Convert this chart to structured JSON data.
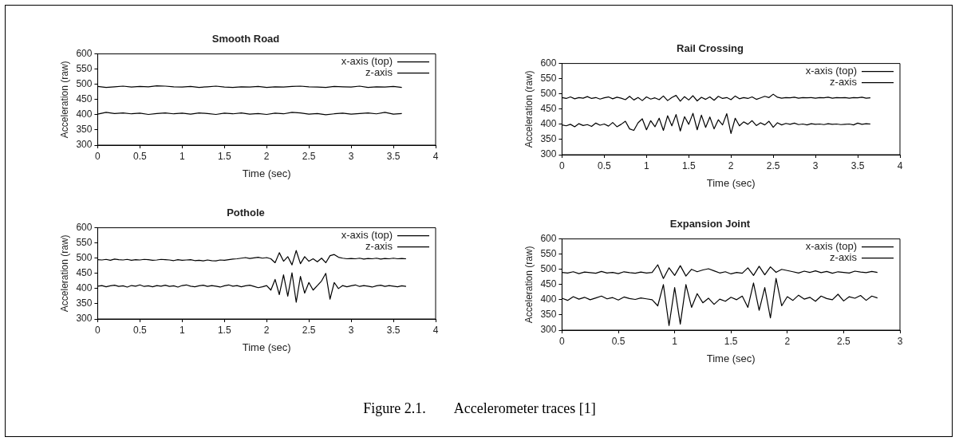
{
  "chart_data": [
    {
      "type": "line",
      "title": "Smooth Road",
      "xlabel": "Time (sec)",
      "ylabel": "Acceleration (raw)",
      "xlim": [
        0,
        4
      ],
      "xticks": [
        0,
        0.5,
        1,
        1.5,
        2,
        2.5,
        3,
        3.5,
        4
      ],
      "ylim": [
        300,
        600
      ],
      "yticks": [
        300,
        350,
        400,
        450,
        500,
        550,
        600
      ],
      "legend": "top right",
      "marker": "none",
      "line_style": "solid",
      "x": [
        0,
        0.1,
        0.2,
        0.3,
        0.4,
        0.5,
        0.6,
        0.7,
        0.8,
        0.9,
        1,
        1.1,
        1.2,
        1.3,
        1.4,
        1.5,
        1.6,
        1.7,
        1.8,
        1.9,
        2,
        2.1,
        2.2,
        2.3,
        2.4,
        2.5,
        2.6,
        2.7,
        2.8,
        2.9,
        3,
        3.1,
        3.2,
        3.3,
        3.4,
        3.5,
        3.6
      ],
      "series": [
        {
          "name": "x-axis (top)",
          "color": "#000000",
          "values": [
            493,
            490,
            492,
            494,
            491,
            493,
            492,
            495,
            494,
            492,
            491,
            493,
            490,
            492,
            494,
            491,
            490,
            492,
            491,
            493,
            490,
            492,
            491,
            493,
            494,
            492,
            491,
            490,
            493,
            492,
            491,
            494,
            490,
            492,
            491,
            493,
            490
          ]
        },
        {
          "name": "z-axis",
          "color": "#000000",
          "values": [
            402,
            408,
            404,
            406,
            403,
            405,
            401,
            404,
            406,
            403,
            405,
            402,
            406,
            404,
            401,
            405,
            403,
            406,
            402,
            404,
            401,
            405,
            403,
            408,
            406,
            402,
            404,
            400,
            403,
            405,
            402,
            404,
            406,
            403,
            408,
            402,
            404
          ]
        }
      ]
    },
    {
      "type": "line",
      "title": "Rail Crossing",
      "xlabel": "Time (sec)",
      "ylabel": "Acceleration (raw)",
      "xlim": [
        0,
        4
      ],
      "xticks": [
        0,
        0.5,
        1,
        1.5,
        2,
        2.5,
        3,
        3.5,
        4
      ],
      "ylim": [
        300,
        600
      ],
      "yticks": [
        300,
        350,
        400,
        450,
        500,
        550,
        600
      ],
      "legend": "top right",
      "marker": "none",
      "line_style": "solid",
      "x": [
        0,
        0.05,
        0.1,
        0.15,
        0.2,
        0.25,
        0.3,
        0.35,
        0.4,
        0.45,
        0.5,
        0.55,
        0.6,
        0.65,
        0.7,
        0.75,
        0.8,
        0.85,
        0.9,
        0.95,
        1,
        1.05,
        1.1,
        1.15,
        1.2,
        1.25,
        1.3,
        1.35,
        1.4,
        1.45,
        1.5,
        1.55,
        1.6,
        1.65,
        1.7,
        1.75,
        1.8,
        1.85,
        1.9,
        1.95,
        2,
        2.05,
        2.1,
        2.15,
        2.2,
        2.25,
        2.3,
        2.35,
        2.4,
        2.45,
        2.5,
        2.55,
        2.6,
        2.65,
        2.7,
        2.75,
        2.8,
        2.85,
        2.9,
        2.95,
        3,
        3.05,
        3.1,
        3.15,
        3.2,
        3.25,
        3.3,
        3.35,
        3.4,
        3.45,
        3.5,
        3.55,
        3.6,
        3.65
      ],
      "series": [
        {
          "name": "x-axis (top)",
          "color": "#000000",
          "values": [
            488,
            485,
            490,
            484,
            488,
            486,
            491,
            485,
            488,
            483,
            487,
            490,
            484,
            489,
            486,
            481,
            492,
            480,
            488,
            478,
            490,
            483,
            487,
            481,
            493,
            478,
            488,
            495,
            476,
            491,
            480,
            494,
            477,
            489,
            482,
            490,
            479,
            492,
            485,
            488,
            481,
            493,
            484,
            488,
            485,
            490,
            482,
            487,
            492,
            488,
            499,
            489,
            486,
            488,
            487,
            489,
            486,
            488,
            487,
            488,
            486,
            488,
            487,
            489,
            486,
            488,
            487,
            488,
            486,
            488,
            487,
            489,
            486,
            487
          ]
        },
        {
          "name": "z-axis",
          "color": "#000000",
          "values": [
            398,
            395,
            400,
            392,
            402,
            396,
            399,
            393,
            404,
            397,
            401,
            394,
            406,
            392,
            400,
            410,
            385,
            380,
            405,
            418,
            382,
            412,
            392,
            420,
            380,
            428,
            395,
            432,
            378,
            425,
            400,
            436,
            382,
            430,
            390,
            424,
            385,
            415,
            398,
            435,
            370,
            420,
            395,
            408,
            400,
            412,
            396,
            405,
            398,
            410,
            390,
            405,
            398,
            403,
            400,
            404,
            399,
            401,
            398,
            402,
            400,
            401,
            399,
            402,
            400,
            401,
            399,
            400,
            401,
            398,
            404,
            400,
            402,
            401
          ]
        }
      ]
    },
    {
      "type": "line",
      "title": "Pothole",
      "ylabel": "Acceleration (raw)",
      "xlim": [
        0,
        4
      ],
      "xticks": [
        0,
        0.5,
        1,
        1.5,
        2,
        2.5,
        3,
        3.5,
        4
      ],
      "ylim": [
        300,
        600
      ],
      "yticks": [
        300,
        350,
        400,
        450,
        500,
        550,
        600
      ],
      "xlabel": "Time (sec)",
      "legend": "top right",
      "marker": "none",
      "line_style": "solid",
      "x": [
        0,
        0.05,
        0.1,
        0.15,
        0.2,
        0.25,
        0.3,
        0.35,
        0.4,
        0.45,
        0.5,
        0.55,
        0.6,
        0.65,
        0.7,
        0.75,
        0.8,
        0.85,
        0.9,
        0.95,
        1,
        1.05,
        1.1,
        1.15,
        1.2,
        1.25,
        1.3,
        1.35,
        1.4,
        1.45,
        1.5,
        1.55,
        1.6,
        1.65,
        1.7,
        1.75,
        1.8,
        1.85,
        1.9,
        1.95,
        2,
        2.05,
        2.1,
        2.15,
        2.2,
        2.25,
        2.3,
        2.35,
        2.4,
        2.45,
        2.5,
        2.55,
        2.6,
        2.65,
        2.7,
        2.75,
        2.8,
        2.85,
        2.9,
        2.95,
        3,
        3.05,
        3.1,
        3.15,
        3.2,
        3.25,
        3.3,
        3.35,
        3.4,
        3.45,
        3.5,
        3.55,
        3.6,
        3.65
      ],
      "series": [
        {
          "name": "x-axis (top)",
          "color": "#000000",
          "values": [
            495,
            494,
            496,
            493,
            497,
            495,
            494,
            496,
            493,
            495,
            494,
            496,
            495,
            493,
            494,
            496,
            495,
            494,
            492,
            495,
            493,
            494,
            495,
            492,
            493,
            491,
            494,
            492,
            491,
            494,
            493,
            495,
            497,
            498,
            500,
            502,
            499,
            501,
            503,
            500,
            502,
            498,
            485,
            518,
            490,
            505,
            478,
            525,
            482,
            505,
            490,
            498,
            488,
            500,
            485,
            508,
            512,
            503,
            500,
            498,
            499,
            498,
            500,
            497,
            499,
            498,
            500,
            497,
            499,
            498,
            500,
            498,
            499,
            498
          ]
        },
        {
          "name": "z-axis",
          "color": "#000000",
          "values": [
            408,
            410,
            406,
            409,
            411,
            407,
            409,
            405,
            410,
            408,
            412,
            407,
            409,
            406,
            410,
            408,
            411,
            407,
            409,
            405,
            410,
            412,
            408,
            406,
            409,
            411,
            407,
            410,
            408,
            405,
            409,
            412,
            408,
            410,
            406,
            409,
            411,
            407,
            403,
            406,
            410,
            395,
            430,
            380,
            445,
            375,
            452,
            355,
            440,
            385,
            420,
            395,
            410,
            425,
            450,
            365,
            420,
            400,
            410,
            406,
            409,
            412,
            407,
            410,
            408,
            405,
            409,
            411,
            407,
            410,
            408,
            406,
            409,
            407
          ]
        }
      ]
    },
    {
      "type": "line",
      "title": "Expansion Joint",
      "xlabel": "Time (sec)",
      "ylabel": "Acceleration (raw)",
      "xlim": [
        0,
        3
      ],
      "xticks": [
        0,
        0.5,
        1,
        1.5,
        2,
        2.5,
        3
      ],
      "ylim": [
        300,
        600
      ],
      "yticks": [
        300,
        350,
        400,
        450,
        500,
        550,
        600
      ],
      "legend": "top right",
      "marker": "none",
      "line_style": "solid",
      "annotations": [
        "Figure 2.1.        Accelerometer traces [1]"
      ],
      "x": [
        0,
        0.05,
        0.1,
        0.15,
        0.2,
        0.25,
        0.3,
        0.35,
        0.4,
        0.45,
        0.5,
        0.55,
        0.6,
        0.65,
        0.7,
        0.75,
        0.8,
        0.85,
        0.9,
        0.95,
        1,
        1.05,
        1.1,
        1.15,
        1.2,
        1.25,
        1.3,
        1.35,
        1.4,
        1.45,
        1.5,
        1.55,
        1.6,
        1.65,
        1.7,
        1.75,
        1.8,
        1.85,
        1.9,
        1.95,
        2,
        2.05,
        2.1,
        2.15,
        2.2,
        2.25,
        2.3,
        2.35,
        2.4,
        2.45,
        2.5,
        2.55,
        2.6,
        2.65,
        2.7,
        2.75,
        2.8
      ],
      "series": [
        {
          "name": "x-axis (top)",
          "color": "#000000",
          "values": [
            490,
            488,
            492,
            486,
            491,
            489,
            487,
            493,
            488,
            490,
            486,
            492,
            489,
            487,
            491,
            488,
            490,
            515,
            470,
            505,
            480,
            512,
            478,
            500,
            492,
            498,
            502,
            495,
            488,
            492,
            485,
            490,
            487,
            505,
            480,
            510,
            482,
            508,
            490,
            500,
            496,
            492,
            488,
            494,
            490,
            495,
            489,
            493,
            487,
            492,
            490,
            488,
            494,
            491,
            489,
            493,
            490
          ]
        },
        {
          "name": "z-axis",
          "color": "#000000",
          "values": [
            405,
            398,
            410,
            402,
            408,
            400,
            406,
            412,
            403,
            407,
            399,
            409,
            404,
            401,
            406,
            403,
            400,
            380,
            450,
            315,
            440,
            320,
            450,
            375,
            420,
            390,
            405,
            385,
            402,
            395,
            408,
            400,
            412,
            375,
            455,
            365,
            440,
            340,
            470,
            380,
            410,
            398,
            415,
            402,
            408,
            395,
            412,
            404,
            400,
            418,
            396,
            410,
            405,
            414,
            398,
            412,
            406
          ]
        }
      ]
    }
  ]
}
